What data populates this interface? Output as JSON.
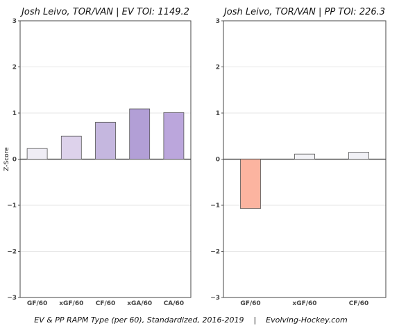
{
  "caption": "EV & PP RAPM Type (per 60), Standardized, 2016-2019    |    Evolving-Hockey.com",
  "chart_data": [
    {
      "type": "bar",
      "title": "Josh Leivo, TOR/VAN  |  EV TOI: 1149.2",
      "ylabel": "Z-Score",
      "ylim": [
        -3,
        3
      ],
      "yticks": [
        -3,
        -2,
        -1,
        0,
        1,
        2,
        3
      ],
      "grid": true,
      "categories": [
        "GF/60",
        "xGF/60",
        "CF/60",
        "xGA/60",
        "CA/60"
      ],
      "values": [
        0.23,
        0.5,
        0.8,
        1.09,
        1.01
      ],
      "colors": [
        "#efedf5",
        "#ddd2eb",
        "#c5b7df",
        "#b29fd6",
        "#bba6dc"
      ]
    },
    {
      "type": "bar",
      "title": "Josh Leivo, TOR/VAN  |  PP TOI: 226.3",
      "ylabel": "",
      "ylim": [
        -3,
        3
      ],
      "yticks": [
        -3,
        -2,
        -1,
        0,
        1,
        2,
        3
      ],
      "grid": true,
      "categories": [
        "GF/60",
        "xGF/60",
        "CF/60"
      ],
      "values": [
        -1.07,
        0.11,
        0.15
      ],
      "colors": [
        "#fcb4a0",
        "#f4f4f8",
        "#f1f1f6"
      ]
    }
  ]
}
